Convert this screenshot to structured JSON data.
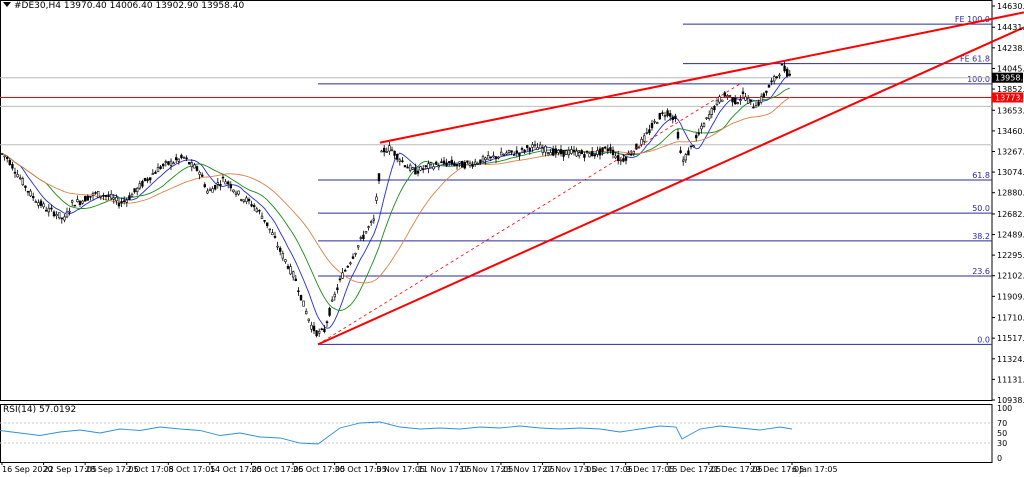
{
  "header": {
    "symbol": "#DE30,H4",
    "ohlc": "13970.40 14006.40 13902.90 13958.40"
  },
  "rsi_header": "RSI(14) 57.0192",
  "colors": {
    "candle": "#000000",
    "grid": "#9aa0c8",
    "fib": "#2b2b9a",
    "trend": "#ff0000",
    "ma_fast": "#1f2bd6",
    "ma_mid": "#1a8a1a",
    "ma_slow": "#d9824a",
    "rsi": "#2d8fe0",
    "price_box": "#000000",
    "marker_box": "#ff0000"
  },
  "chart_data": {
    "type": "candlestick",
    "title": "",
    "y_axis": {
      "min": 10938.75,
      "max": 14630.1,
      "ticks": [
        "14630.10",
        "14431.20",
        "14238.15",
        "14045.10",
        "13852.05",
        "13653.15",
        "13460.10",
        "13267.05",
        "13074.00",
        "12880.95",
        "12682.05",
        "12489.00",
        "12295.95",
        "12102.90",
        "11909.85",
        "11710.95",
        "11517.90",
        "11324.85",
        "11131.80",
        "10938.75"
      ]
    },
    "x_axis": {
      "ticks": [
        "16 Sep 2020",
        "22 Sep 17:05",
        "28 Sep 17:05",
        "2 Oct 17:05",
        "8 Oct 17:05",
        "14 Oct 17:05",
        "20 Oct 17:05",
        "26 Oct 17:05",
        "30 Oct 17:05",
        "5 Nov 17:05",
        "11 Nov 17:05",
        "17 Nov 17:05",
        "23 Nov 17:05",
        "27 Nov 17:05",
        "3 Dec 17:05",
        "9 Dec 17:05",
        "15 Dec 17:05",
        "21 Dec 17:05",
        "29 Dec 17:05",
        "6 Jan 17:05"
      ]
    },
    "price_path": [
      [
        0,
        13260
      ],
      [
        8,
        13200
      ],
      [
        16,
        13080
      ],
      [
        24,
        12960
      ],
      [
        32,
        12850
      ],
      [
        40,
        12780
      ],
      [
        48,
        12720
      ],
      [
        56,
        12690
      ],
      [
        64,
        12620
      ],
      [
        72,
        12780
      ],
      [
        80,
        12800
      ],
      [
        88,
        12840
      ],
      [
        96,
        12870
      ],
      [
        104,
        12860
      ],
      [
        112,
        12830
      ],
      [
        120,
        12780
      ],
      [
        128,
        12830
      ],
      [
        136,
        12900
      ],
      [
        144,
        12980
      ],
      [
        152,
        13050
      ],
      [
        160,
        13120
      ],
      [
        168,
        13150
      ],
      [
        176,
        13180
      ],
      [
        184,
        13210
      ],
      [
        192,
        13130
      ],
      [
        200,
        13080
      ],
      [
        208,
        12880
      ],
      [
        216,
        12950
      ],
      [
        224,
        13010
      ],
      [
        232,
        12940
      ],
      [
        240,
        12850
      ],
      [
        248,
        12800
      ],
      [
        256,
        12740
      ],
      [
        264,
        12640
      ],
      [
        272,
        12500
      ],
      [
        280,
        12340
      ],
      [
        288,
        12200
      ],
      [
        296,
        12060
      ],
      [
        304,
        11820
      ],
      [
        312,
        11620
      ],
      [
        318,
        11560
      ],
      [
        324,
        11580
      ],
      [
        330,
        11780
      ],
      [
        336,
        11950
      ],
      [
        342,
        12100
      ],
      [
        350,
        12240
      ],
      [
        358,
        12380
      ],
      [
        366,
        12520
      ],
      [
        374,
        12620
      ],
      [
        382,
        13270
      ],
      [
        390,
        13300
      ],
      [
        398,
        13220
      ],
      [
        406,
        13140
      ],
      [
        414,
        13080
      ],
      [
        422,
        13100
      ],
      [
        430,
        13130
      ],
      [
        440,
        13150
      ],
      [
        450,
        13160
      ],
      [
        460,
        13140
      ],
      [
        470,
        13150
      ],
      [
        480,
        13180
      ],
      [
        490,
        13200
      ],
      [
        500,
        13230
      ],
      [
        510,
        13250
      ],
      [
        520,
        13260
      ],
      [
        530,
        13310
      ],
      [
        540,
        13300
      ],
      [
        550,
        13270
      ],
      [
        560,
        13250
      ],
      [
        570,
        13260
      ],
      [
        580,
        13250
      ],
      [
        590,
        13240
      ],
      [
        600,
        13260
      ],
      [
        610,
        13300
      ],
      [
        620,
        13180
      ],
      [
        628,
        13230
      ],
      [
        636,
        13300
      ],
      [
        644,
        13380
      ],
      [
        652,
        13500
      ],
      [
        660,
        13600
      ],
      [
        668,
        13640
      ],
      [
        676,
        13560
      ],
      [
        682,
        13160
      ],
      [
        688,
        13250
      ],
      [
        696,
        13380
      ],
      [
        704,
        13520
      ],
      [
        712,
        13650
      ],
      [
        720,
        13760
      ],
      [
        728,
        13800
      ],
      [
        736,
        13730
      ],
      [
        744,
        13800
      ],
      [
        752,
        13700
      ],
      [
        760,
        13730
      ],
      [
        768,
        13860
      ],
      [
        776,
        13960
      ],
      [
        782,
        14060
      ],
      [
        788,
        14000
      ],
      [
        792,
        13958
      ]
    ],
    "trendlines": [
      {
        "from": [
          318,
          11460
        ],
        "to": [
          1024,
          14430
        ]
      },
      {
        "from": [
          380,
          13350
        ],
        "to": [
          1024,
          14570
        ]
      },
      {
        "from": [
          318,
          11460
        ],
        "to": [
          740,
          13900
        ],
        "style": "dashed"
      }
    ],
    "fibonacci": [
      {
        "label": "0.0",
        "value": 11460
      },
      {
        "label": "23.6",
        "value": 12100
      },
      {
        "label": "38.2",
        "value": 12430
      },
      {
        "label": "50.0",
        "value": 12690
      },
      {
        "label": "61.8",
        "value": 13000
      },
      {
        "label": "100.0",
        "value": 13900
      },
      {
        "label": "FE 61.8",
        "value": 14090
      },
      {
        "label": "FE 100.0",
        "value": 14460
      }
    ],
    "extra_levels": [
      13330,
      13690
    ],
    "price_current": {
      "label": "13958.40",
      "value": 13958.4
    },
    "price_marker": {
      "label": "13773.?1",
      "value": 13773
    }
  },
  "rsi": {
    "ticks": [
      "100",
      "70",
      "50",
      "30",
      "0"
    ],
    "path": [
      [
        0,
        55
      ],
      [
        20,
        50
      ],
      [
        40,
        45
      ],
      [
        60,
        52
      ],
      [
        80,
        56
      ],
      [
        100,
        50
      ],
      [
        120,
        58
      ],
      [
        140,
        55
      ],
      [
        160,
        62
      ],
      [
        180,
        58
      ],
      [
        200,
        55
      ],
      [
        220,
        45
      ],
      [
        240,
        50
      ],
      [
        260,
        42
      ],
      [
        280,
        40
      ],
      [
        300,
        30
      ],
      [
        318,
        28
      ],
      [
        340,
        60
      ],
      [
        360,
        70
      ],
      [
        380,
        72
      ],
      [
        400,
        62
      ],
      [
        420,
        58
      ],
      [
        440,
        60
      ],
      [
        460,
        58
      ],
      [
        480,
        62
      ],
      [
        500,
        60
      ],
      [
        520,
        64
      ],
      [
        540,
        60
      ],
      [
        560,
        58
      ],
      [
        580,
        60
      ],
      [
        600,
        58
      ],
      [
        620,
        52
      ],
      [
        640,
        58
      ],
      [
        660,
        64
      ],
      [
        676,
        62
      ],
      [
        682,
        38
      ],
      [
        700,
        58
      ],
      [
        720,
        64
      ],
      [
        740,
        60
      ],
      [
        760,
        56
      ],
      [
        780,
        62
      ],
      [
        792,
        58
      ]
    ]
  }
}
